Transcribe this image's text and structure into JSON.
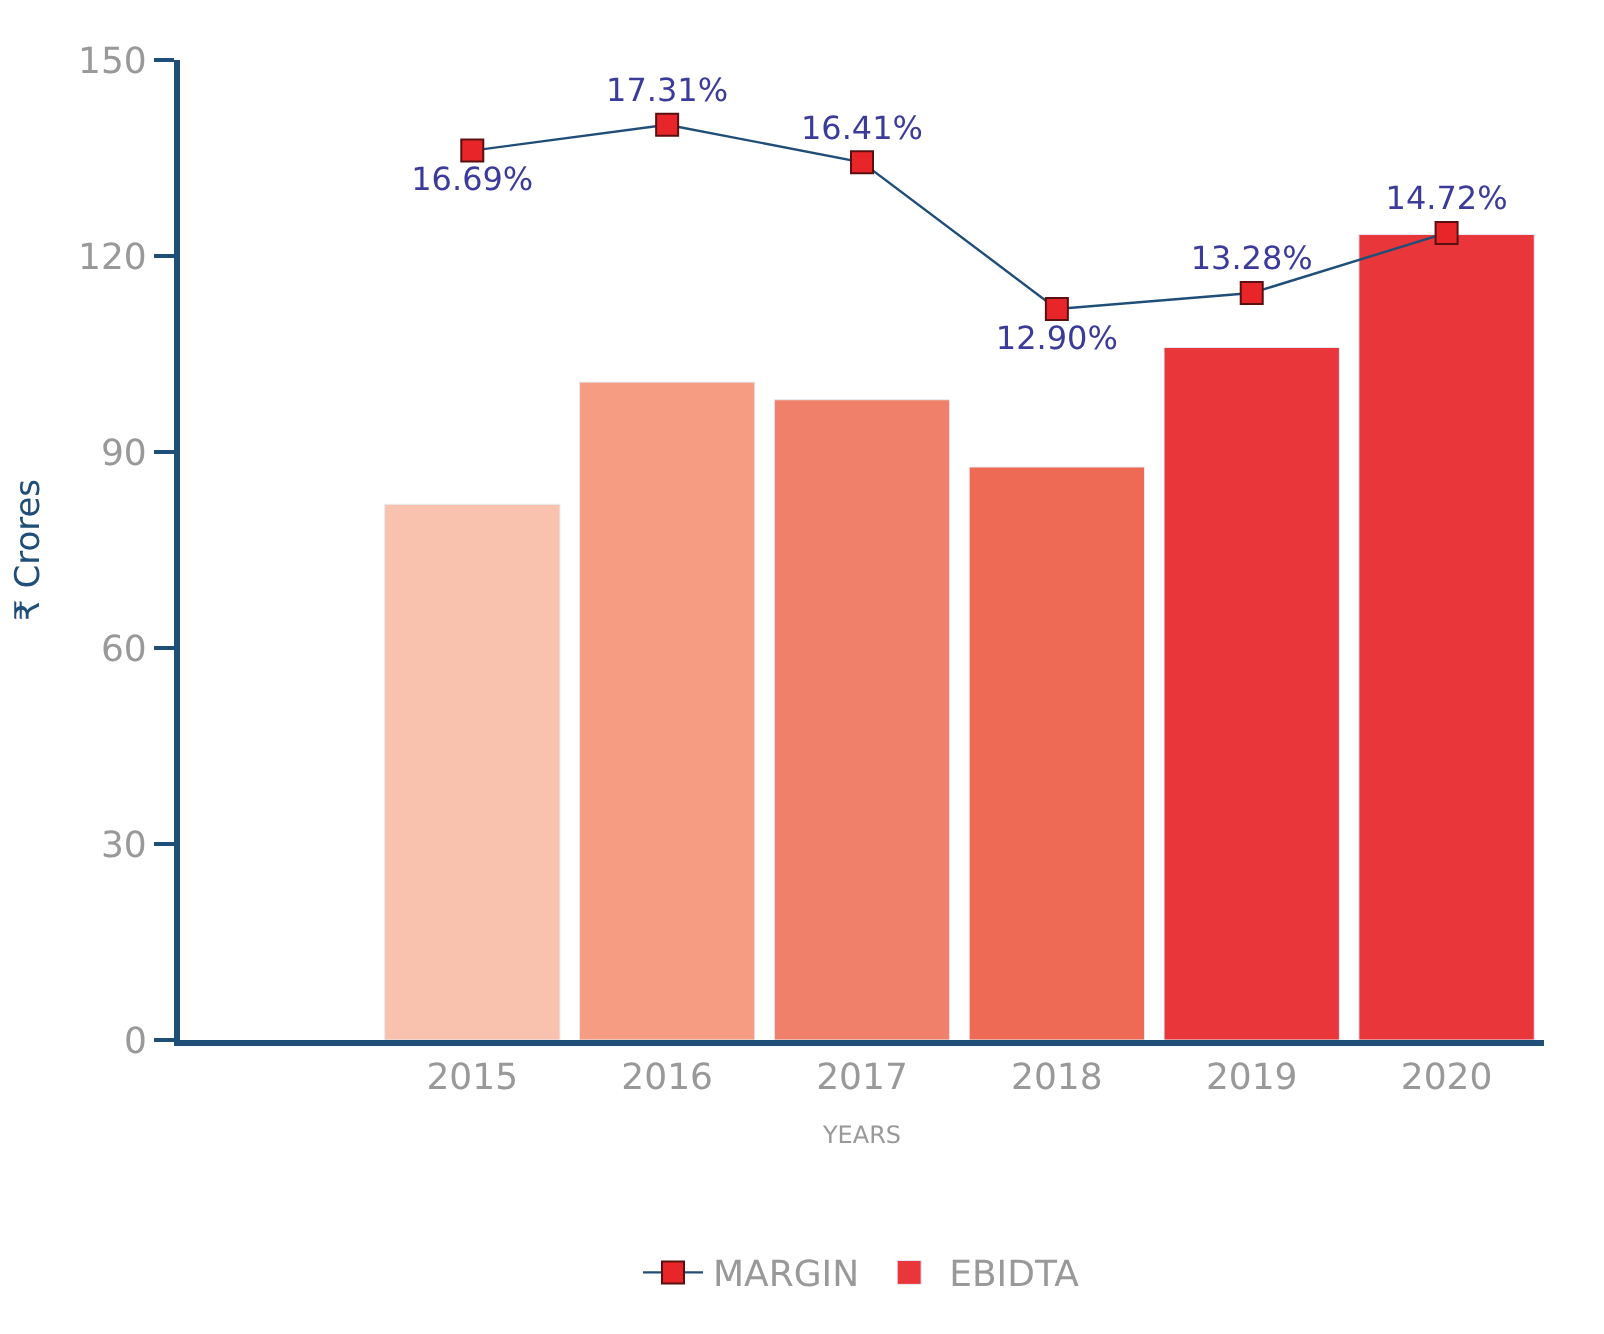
{
  "chart_data": {
    "type": "bar",
    "xlabel": "YEARS",
    "ylabel": "₹ Crores",
    "categories": [
      null,
      "2015",
      "2016",
      "2017",
      "2018",
      "2019",
      "2020"
    ],
    "series": [
      {
        "name": "MARGIN",
        "type": "line",
        "axis": "y2",
        "color": "#1f4e79",
        "marker": "square",
        "values": [
          null,
          16.69,
          17.31,
          16.41,
          12.9,
          13.28,
          14.72
        ],
        "value_labels": [
          null,
          "16.69%",
          "17.31%",
          "16.41%",
          "12.90%",
          "13.28%",
          "14.72%"
        ]
      },
      {
        "name": "EBIDTA",
        "color": "#e8363a",
        "colors": [
          null,
          "#f9c2ae",
          "#f59c82",
          "#f0806a",
          "#ee6a55",
          "#e8363a",
          "#e8363a"
        ],
        "values": [
          null,
          82,
          100.7,
          98,
          87.7,
          106,
          123.3
        ]
      }
    ],
    "ylim": [
      0,
      150
    ],
    "yticks": [
      0,
      30,
      60,
      90,
      120,
      150
    ],
    "grid": false,
    "legend": "bottom"
  }
}
